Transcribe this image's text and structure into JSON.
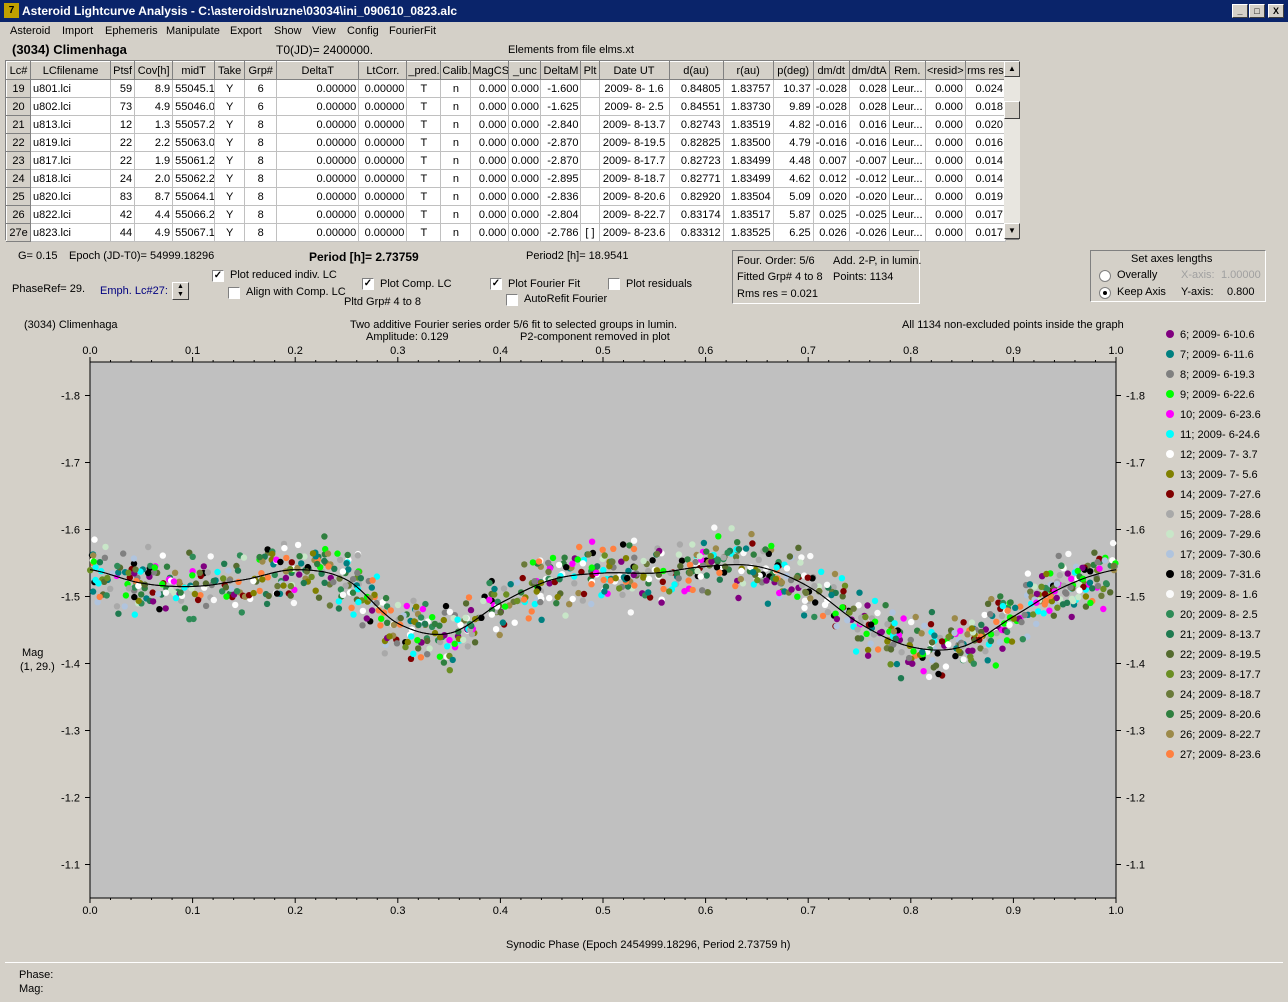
{
  "window": {
    "title": "Asteroid Lightcurve Analysis - C:\\asteroids\\ruzne\\03034\\ini_090610_0823.alc",
    "min": "_",
    "max": "□",
    "close": "X"
  },
  "menu": [
    "Asteroid",
    "Import",
    "Ephemeris",
    "Manipulate",
    "Export",
    "Show",
    "View",
    "Config",
    "FourierFit"
  ],
  "header": {
    "object": "(3034) Climenhaga",
    "t0": "T0(JD)= 2400000.",
    "elements": "Elements from file elms.xt"
  },
  "table": {
    "columns": [
      "Lc#",
      "LCfilename",
      "Ptsf",
      "Cov[h]",
      "midT",
      "Take",
      "Grp#",
      "DeltaT",
      "LtCorr.",
      "_pred.",
      "Calib.",
      "MagCS",
      "_unc",
      "DeltaM",
      "Plt",
      "Date UT",
      "d(au)",
      "r(au)",
      "p(deg)",
      "dm/dt",
      "dm/dtA",
      "Rem.",
      "<resid>",
      "rms res"
    ],
    "rows": [
      [
        "19",
        "u801.lci",
        "59",
        "8.9",
        "55045.1",
        "Y",
        "6",
        "0.00000",
        "0.00000",
        "T",
        "n",
        "0.000",
        "0.000",
        "-1.600",
        "",
        "2009- 8- 1.6",
        "0.84805",
        "1.83757",
        "10.37",
        "-0.028",
        "0.028",
        "Leur...",
        "0.000",
        "0.024"
      ],
      [
        "20",
        "u802.lci",
        "73",
        "4.9",
        "55046.0",
        "Y",
        "6",
        "0.00000",
        "0.00000",
        "T",
        "n",
        "0.000",
        "0.000",
        "-1.625",
        "",
        "2009- 8- 2.5",
        "0.84551",
        "1.83730",
        "9.89",
        "-0.028",
        "0.028",
        "Leur...",
        "0.000",
        "0.018"
      ],
      [
        "21",
        "u813.lci",
        "12",
        "1.3",
        "55057.2",
        "Y",
        "8",
        "0.00000",
        "0.00000",
        "T",
        "n",
        "0.000",
        "0.000",
        "-2.840",
        "",
        "2009- 8-13.7",
        "0.82743",
        "1.83519",
        "4.82",
        "-0.016",
        "0.016",
        "Leur...",
        "0.000",
        "0.020"
      ],
      [
        "22",
        "u819.lci",
        "22",
        "2.2",
        "55063.0",
        "Y",
        "8",
        "0.00000",
        "0.00000",
        "T",
        "n",
        "0.000",
        "0.000",
        "-2.870",
        "",
        "2009- 8-19.5",
        "0.82825",
        "1.83500",
        "4.79",
        "-0.016",
        "-0.016",
        "Leur...",
        "0.000",
        "0.016"
      ],
      [
        "23",
        "u817.lci",
        "22",
        "1.9",
        "55061.2",
        "Y",
        "8",
        "0.00000",
        "0.00000",
        "T",
        "n",
        "0.000",
        "0.000",
        "-2.870",
        "",
        "2009- 8-17.7",
        "0.82723",
        "1.83499",
        "4.48",
        "0.007",
        "-0.007",
        "Leur...",
        "0.000",
        "0.014"
      ],
      [
        "24",
        "u818.lci",
        "24",
        "2.0",
        "55062.2",
        "Y",
        "8",
        "0.00000",
        "0.00000",
        "T",
        "n",
        "0.000",
        "0.000",
        "-2.895",
        "",
        "2009- 8-18.7",
        "0.82771",
        "1.83499",
        "4.62",
        "0.012",
        "-0.012",
        "Leur...",
        "0.000",
        "0.014"
      ],
      [
        "25",
        "u820.lci",
        "83",
        "8.7",
        "55064.1",
        "Y",
        "8",
        "0.00000",
        "0.00000",
        "T",
        "n",
        "0.000",
        "0.000",
        "-2.836",
        "",
        "2009- 8-20.6",
        "0.82920",
        "1.83504",
        "5.09",
        "0.020",
        "-0.020",
        "Leur...",
        "0.000",
        "0.019"
      ],
      [
        "26",
        "u822.lci",
        "42",
        "4.4",
        "55066.2",
        "Y",
        "8",
        "0.00000",
        "0.00000",
        "T",
        "n",
        "0.000",
        "0.000",
        "-2.804",
        "",
        "2009- 8-22.7",
        "0.83174",
        "1.83517",
        "5.87",
        "0.025",
        "-0.025",
        "Leur...",
        "0.000",
        "0.017"
      ],
      [
        "27e",
        "u823.lci",
        "44",
        "4.9",
        "55067.1",
        "Y",
        "8",
        "0.00000",
        "0.00000",
        "T",
        "n",
        "0.000",
        "0.000",
        "-2.786",
        "[ ]",
        "2009- 8-23.6",
        "0.83312",
        "1.83525",
        "6.25",
        "0.026",
        "-0.026",
        "Leur...",
        "0.000",
        "0.017"
      ]
    ]
  },
  "controls": {
    "g": "G= 0.15",
    "epoch": "Epoch (JD-T0)= 54999.18296",
    "period": "Period [h]= 2.73759",
    "period2": "Period2 [h]= 18.9541",
    "phaseref": "PhaseRef= 29.",
    "emph": "Emph. Lc#27:",
    "plot_reduced": "Plot reduced indiv. LC",
    "align": "Align with Comp. LC",
    "plot_comp": "Plot Comp. LC",
    "pltd_grp": "Pltd Grp#  4  to   8",
    "plot_fourier": "Plot Fourier Fit",
    "autorefit": "AutoRefit Fourier",
    "plot_resid": "Plot residuals",
    "four_order": "Four. Order:  5/6",
    "add": "Add. 2-P, in lumin.",
    "fitted": "Fitted Grp# 4 to 8",
    "points": "Points: 1134",
    "rms": "Rms res      = 0.021",
    "axes_title": "Set axes lengths",
    "overally": "Overally",
    "keep_axis": "Keep Axis",
    "xaxis": "X-axis:",
    "xaxis_val": "1.00000",
    "yaxis": "Y-axis:",
    "yaxis_val": "0.800"
  },
  "graph": {
    "object": "(3034) Climenhaga",
    "line1": "Two additive Fourier series order 5/6 fit to selected groups in lumin.",
    "amplitude": "Amplitude: 0.129",
    "p2": "P2-component removed in plot",
    "allpoints": "All 1134 non-excluded points inside the graph",
    "ylabel1": "Mag",
    "ylabel2": "(1, 29.)",
    "xlabel": "Synodic Phase (Epoch 2454999.18296, Period 2.73759 h)"
  },
  "chart_data": {
    "type": "scatter",
    "title": "Two additive Fourier series order 5/6 fit to selected groups in lumin.",
    "xlabel": "Synodic Phase (Epoch 2454999.18296, Period 2.73759 h)",
    "ylabel": "Mag",
    "xlim": [
      0,
      1
    ],
    "ylim": [
      -1.05,
      -1.85
    ],
    "y_inverted": true,
    "x_ticks": [
      "0.0",
      "0.1",
      "0.2",
      "0.3",
      "0.4",
      "0.5",
      "0.6",
      "0.7",
      "0.8",
      "0.9",
      "1.0"
    ],
    "y_ticks": [
      "-1.8",
      "-1.7",
      "-1.6",
      "-1.5",
      "-1.4",
      "-1.3",
      "-1.2",
      "-1.1"
    ],
    "legend_position": "right",
    "series": [
      {
        "name": "6; 2009- 6-10.6",
        "color": "#800080"
      },
      {
        "name": "7; 2009- 6-11.6",
        "color": "#008080"
      },
      {
        "name": "8; 2009- 6-19.3",
        "color": "#808080"
      },
      {
        "name": "9; 2009- 6-22.6",
        "color": "#00ff00"
      },
      {
        "name": "10; 2009- 6-23.6",
        "color": "#ff00ff"
      },
      {
        "name": "11; 2009- 6-24.6",
        "color": "#00ffff"
      },
      {
        "name": "12; 2009- 7- 3.7",
        "color": "#ffffff"
      },
      {
        "name": "13; 2009- 7- 5.6",
        "color": "#808000"
      },
      {
        "name": "14; 2009- 7-27.6",
        "color": "#800000"
      },
      {
        "name": "15; 2009- 7-28.6",
        "color": "#a9a9a9"
      },
      {
        "name": "16; 2009- 7-29.6",
        "color": "#c8e6c8"
      },
      {
        "name": "17; 2009- 7-30.6",
        "color": "#b0c4de"
      },
      {
        "name": "18; 2009- 7-31.6",
        "color": "#000000"
      },
      {
        "name": "19; 2009- 8- 1.6",
        "color": "#fafafa"
      },
      {
        "name": "20; 2009- 8- 2.5",
        "color": "#2e8b57"
      },
      {
        "name": "21; 2009- 8-13.7",
        "color": "#1f7a50"
      },
      {
        "name": "22; 2009- 8-19.5",
        "color": "#556b2f"
      },
      {
        "name": "23; 2009- 8-17.7",
        "color": "#6b8e23"
      },
      {
        "name": "24; 2009- 8-18.7",
        "color": "#6a7a3a"
      },
      {
        "name": "25; 2009- 8-20.6",
        "color": "#2f7f3f"
      },
      {
        "name": "26; 2009- 8-22.7",
        "color": "#9c8a4a"
      },
      {
        "name": "27; 2009- 8-23.6",
        "color": "#ff8040"
      }
    ],
    "fit_curve": {
      "x": [
        0,
        0.05,
        0.1,
        0.15,
        0.2,
        0.25,
        0.3,
        0.35,
        0.4,
        0.45,
        0.5,
        0.55,
        0.6,
        0.65,
        0.7,
        0.75,
        0.8,
        0.85,
        0.9,
        0.95,
        1.0
      ],
      "y": [
        -1.54,
        -1.52,
        -1.515,
        -1.525,
        -1.54,
        -1.525,
        -1.46,
        -1.445,
        -1.49,
        -1.525,
        -1.535,
        -1.535,
        -1.545,
        -1.545,
        -1.515,
        -1.46,
        -1.425,
        -1.425,
        -1.47,
        -1.515,
        -1.54
      ]
    },
    "n_points": 1134
  },
  "status": {
    "phase": "Phase:",
    "mag": "Mag:"
  }
}
